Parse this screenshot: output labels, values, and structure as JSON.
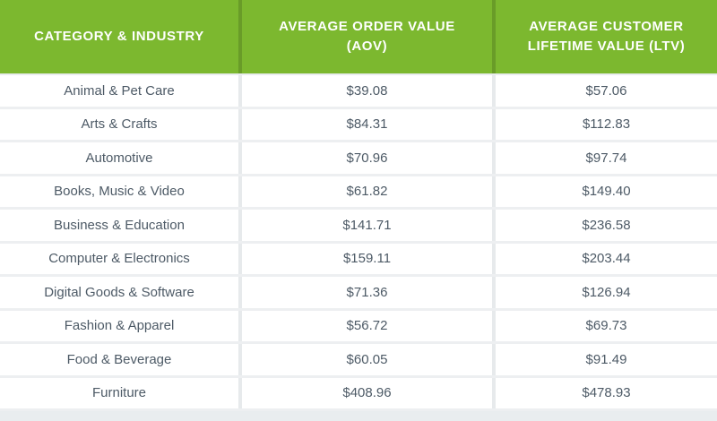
{
  "table": {
    "columns": [
      {
        "label": "CATEGORY & INDUSTRY"
      },
      {
        "label": "AVERAGE ORDER VALUE\n(AOV)"
      },
      {
        "label": "AVERAGE CUSTOMER\nLIFETIME VALUE (LTV)"
      }
    ],
    "rows": [
      {
        "category": "Animal & Pet Care",
        "aov": "$39.08",
        "ltv": "$57.06"
      },
      {
        "category": "Arts & Crafts",
        "aov": "$84.31",
        "ltv": "$112.83"
      },
      {
        "category": "Automotive",
        "aov": "$70.96",
        "ltv": "$97.74"
      },
      {
        "category": "Books, Music & Video",
        "aov": "$61.82",
        "ltv": "$149.40"
      },
      {
        "category": "Business & Education",
        "aov": "$141.71",
        "ltv": "$236.58"
      },
      {
        "category": "Computer & Electronics",
        "aov": "$159.11",
        "ltv": "$203.44"
      },
      {
        "category": "Digital Goods & Software",
        "aov": "$71.36",
        "ltv": "$126.94"
      },
      {
        "category": "Fashion & Apparel",
        "aov": "$56.72",
        "ltv": "$69.73"
      },
      {
        "category": "Food & Beverage",
        "aov": "$60.05",
        "ltv": "$91.49"
      },
      {
        "category": "Furniture",
        "aov": "$408.96",
        "ltv": "$478.93"
      }
    ]
  },
  "colors": {
    "header_green": "#7cb82f",
    "header_text": "#ffffff",
    "body_text": "#4d5a66",
    "separator": "#e7eaec"
  },
  "chart_data": {
    "type": "table",
    "title": "",
    "categories": [
      "Animal & Pet Care",
      "Arts & Crafts",
      "Automotive",
      "Books, Music & Video",
      "Business & Education",
      "Computer & Electronics",
      "Digital Goods & Software",
      "Fashion & Apparel",
      "Food & Beverage",
      "Furniture"
    ],
    "series": [
      {
        "name": "Average Order Value (AOV)",
        "unit": "USD",
        "values": [
          39.08,
          84.31,
          70.96,
          61.82,
          141.71,
          159.11,
          71.36,
          56.72,
          60.05,
          408.96
        ]
      },
      {
        "name": "Average Customer Lifetime Value (LTV)",
        "unit": "USD",
        "values": [
          57.06,
          112.83,
          97.74,
          149.4,
          236.58,
          203.44,
          126.94,
          69.73,
          91.49,
          478.93
        ]
      }
    ]
  }
}
